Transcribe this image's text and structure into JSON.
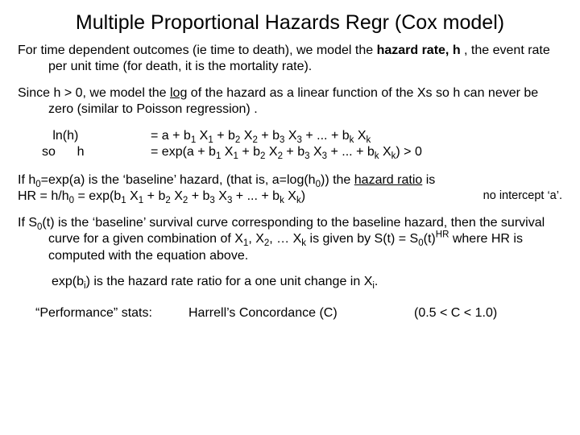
{
  "title": "Multiple Proportional Hazards Regr (Cox model)",
  "p1a": "For time dependent outcomes (ie time to death), we model the ",
  "p1b": "hazard rate, h",
  "p1c": " , the event rate per unit time (for death, it is the mortality rate).",
  "p2a": "Since h > 0, we model the ",
  "p2b": "log",
  "p2c": " of the hazard as a linear function of the Xs so h can never be zero (similar to Poisson regression) .",
  "eq1_l": "   ln(h)",
  "eq2_l": "so      h",
  "eq1_r_pre": "= a + b",
  "eq1_r_post": "",
  "eq_x1": " X",
  "eq_plus_b": " + b",
  "eq_dots_bk": " + ... + b",
  "eq_k": "k",
  "eq_1": "1",
  "eq_2": "2",
  "eq_3": "3",
  "eq2_r_pre": "= exp(a + b",
  "eq2_r_tail": ")    > 0",
  "p3a": "If h",
  "p3b": "=exp(a) is the ‘baseline’ hazard, (that is, a=log(h",
  "p3c": ")) the ",
  "p3d": "hazard ratio",
  "p3e": " is",
  "hr_lhs": " HR = h/h",
  "hr_mid": " = exp(b",
  "hr_end": ")",
  "note_right": "no intercept ‘a’.",
  "p4a": "If S",
  "p4b": "(t) is the ‘baseline’ survival curve corresponding to the baseline hazard, then the survival curve for a given combination of  X",
  "p4c": ", X",
  "p4d": ", … X",
  "p4e": " is given by S(t)  = S",
  "p4f": "(t)",
  "p4g": "   where HR is computed with the equation above.",
  "sup_hr": "HR",
  "p5a": "exp(b",
  "p5b": ") is the hazard rate ratio for a one unit change in X",
  "p5c": ".",
  "sub_i": "i",
  "stats_label": "“Performance” stats:",
  "stats_mid": "Harrell’s Concordance (C)",
  "stats_right": "(0.5 < C < 1.0)",
  "zero": "0"
}
